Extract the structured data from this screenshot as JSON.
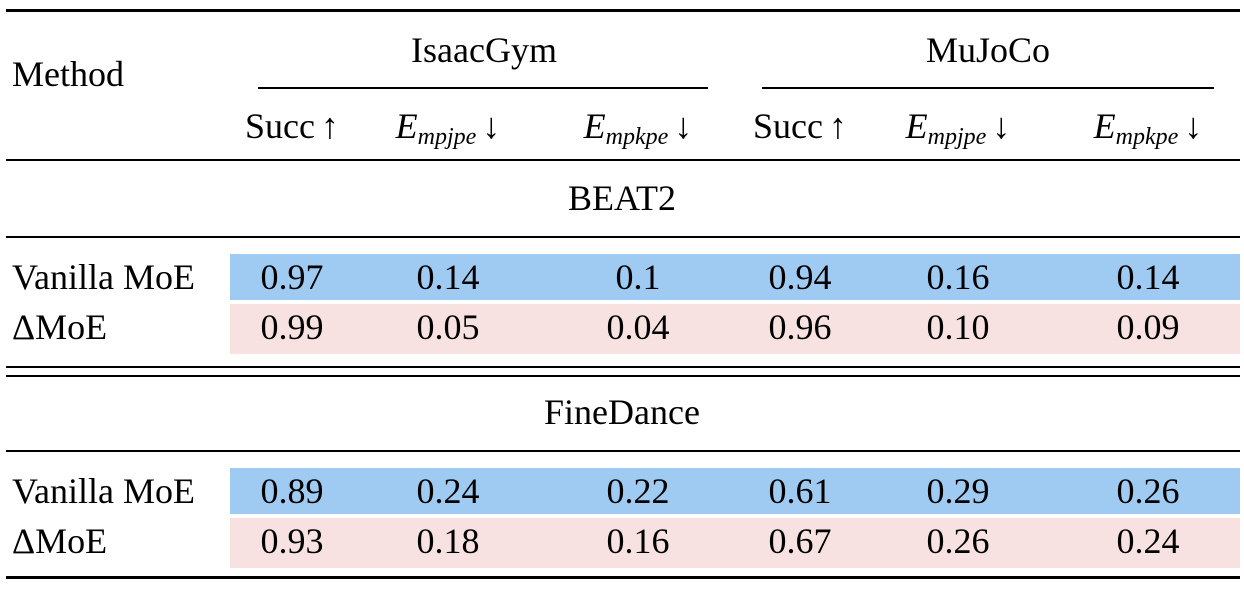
{
  "header": {
    "method": "Method",
    "groups": [
      "IsaacGym",
      "MuJoCo"
    ],
    "columns": [
      {
        "base": "Succ",
        "arrow": "↑"
      },
      {
        "base": "E",
        "sub": "mpjpe",
        "arrow": "↓"
      },
      {
        "base": "E",
        "sub": "mpkpe",
        "arrow": "↓"
      },
      {
        "base": "Succ",
        "arrow": "↑"
      },
      {
        "base": "E",
        "sub": "mpjpe",
        "arrow": "↓"
      },
      {
        "base": "E",
        "sub": "mpkpe",
        "arrow": "↓"
      }
    ]
  },
  "sections": [
    {
      "title": "BEAT2",
      "rows": [
        {
          "label": "Vanilla MoE",
          "values": [
            "0.97",
            "0.14",
            "0.1",
            "0.94",
            "0.16",
            "0.14"
          ]
        },
        {
          "label": "ΔMoE",
          "values": [
            "0.99",
            "0.05",
            "0.04",
            "0.96",
            "0.10",
            "0.09"
          ]
        }
      ]
    },
    {
      "title": "FineDance",
      "rows": [
        {
          "label": "Vanilla MoE",
          "values": [
            "0.89",
            "0.24",
            "0.22",
            "0.61",
            "0.29",
            "0.26"
          ]
        },
        {
          "label": "ΔMoE",
          "values": [
            "0.93",
            "0.18",
            "0.16",
            "0.67",
            "0.26",
            "0.24"
          ]
        }
      ]
    }
  ]
}
